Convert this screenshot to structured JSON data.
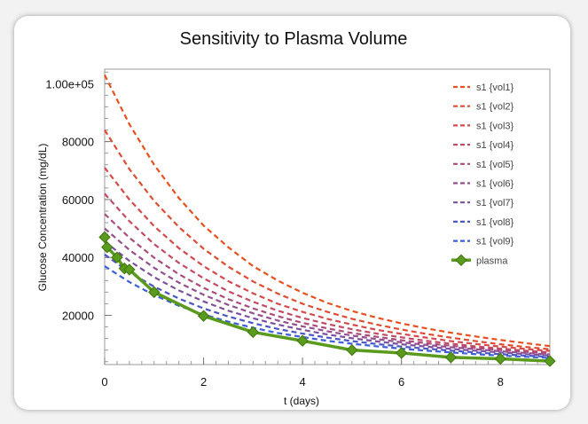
{
  "chart_data": {
    "type": "line",
    "title": "Sensitivity to Plasma Volume",
    "xlabel": "t (days)",
    "ylabel": "Glucose Concentration (mg/dL)",
    "xlim": [
      0,
      9
    ],
    "ylim": [
      3000,
      105000
    ],
    "x_ticks": [
      0,
      2,
      4,
      6,
      8
    ],
    "x_tick_labels": [
      "0",
      "2",
      "4",
      "6",
      "8"
    ],
    "y_ticks": [
      20000,
      40000,
      60000,
      80000,
      100000
    ],
    "y_tick_labels": [
      "20000",
      "40000",
      "60000",
      "80000",
      "1.00e+05"
    ],
    "grid": false,
    "legend_position": "top-right",
    "curve_x": [
      0,
      0.5,
      1,
      1.5,
      2,
      2.5,
      3,
      3.5,
      4,
      4.5,
      5,
      5.5,
      6,
      6.5,
      7,
      7.5,
      8,
      8.5,
      9
    ],
    "series": [
      {
        "name": "s1 {vol1}",
        "color": "#e8501e",
        "style": "dashed",
        "values": [
          103000,
          86000,
          72000,
          60500,
          51000,
          43500,
          37000,
          32000,
          27800,
          24300,
          21500,
          19200,
          17200,
          15500,
          14000,
          12700,
          11500,
          10400,
          9400
        ]
      },
      {
        "name": "s1 {vol2}",
        "color": "#de4c32",
        "style": "dashed",
        "values": [
          84000,
          70500,
          59500,
          50500,
          43000,
          36800,
          31700,
          27500,
          24000,
          21200,
          18800,
          16800,
          15100,
          13600,
          12300,
          11100,
          10000,
          9100,
          8300
        ]
      },
      {
        "name": "s1 {vol3}",
        "color": "#d44a4a",
        "style": "dashed",
        "values": [
          71000,
          60000,
          50800,
          43200,
          37000,
          31800,
          27600,
          24000,
          21200,
          18800,
          16800,
          15000,
          13600,
          12300,
          11100,
          10100,
          9200,
          8400,
          7700
        ]
      },
      {
        "name": "s1 {vol4}",
        "color": "#c24b63",
        "style": "dashed",
        "values": [
          62000,
          52500,
          44600,
          38100,
          32800,
          28300,
          24700,
          21600,
          19100,
          17000,
          15200,
          13700,
          12400,
          11200,
          10200,
          9300,
          8500,
          7800,
          7200
        ]
      },
      {
        "name": "s1 {vol5}",
        "color": "#ab4c7a",
        "style": "dashed",
        "values": [
          55000,
          46800,
          39900,
          34200,
          29500,
          25600,
          22400,
          19700,
          17400,
          15500,
          13900,
          12600,
          11400,
          10400,
          9500,
          8700,
          8000,
          7400,
          6800
        ]
      },
      {
        "name": "s1 {vol6}",
        "color": "#944f8e",
        "style": "dashed",
        "values": [
          50000,
          42600,
          36400,
          31300,
          27100,
          23600,
          20700,
          18200,
          16200,
          14500,
          13000,
          11800,
          10700,
          9800,
          9000,
          8300,
          7600,
          7000,
          6500
        ]
      },
      {
        "name": "s1 {vol7}",
        "color": "#7d4f9f",
        "style": "dashed",
        "values": [
          45500,
          38800,
          33200,
          28600,
          24800,
          21600,
          19000,
          16800,
          15000,
          13400,
          12100,
          11000,
          10000,
          9200,
          8400,
          7800,
          7200,
          6600,
          6100
        ]
      },
      {
        "name": "s1 {vol8}",
        "color": "#4a56c4",
        "style": "dashed",
        "values": [
          41000,
          34900,
          29900,
          25800,
          22400,
          19600,
          17300,
          15300,
          13700,
          12300,
          11100,
          10100,
          9200,
          8500,
          7800,
          7200,
          6600,
          6100,
          5700
        ]
      },
      {
        "name": "s1 {vol9}",
        "color": "#3a5fd9",
        "style": "dashed",
        "values": [
          37000,
          31500,
          27000,
          23300,
          20300,
          17800,
          15700,
          13900,
          12500,
          11200,
          10200,
          9300,
          8500,
          7800,
          7200,
          6600,
          6100,
          5700,
          5300
        ]
      },
      {
        "name": "plasma",
        "color": "#5a9a1c",
        "style": "solid-markers",
        "x": [
          0,
          0.05,
          0.25,
          0.4,
          0.5,
          1,
          2,
          3,
          4,
          5,
          6,
          7,
          8,
          9
        ],
        "values": [
          47000,
          43500,
          40000,
          36200,
          35800,
          28000,
          19800,
          14200,
          11200,
          8000,
          7000,
          5500,
          5000,
          4200
        ]
      }
    ]
  }
}
